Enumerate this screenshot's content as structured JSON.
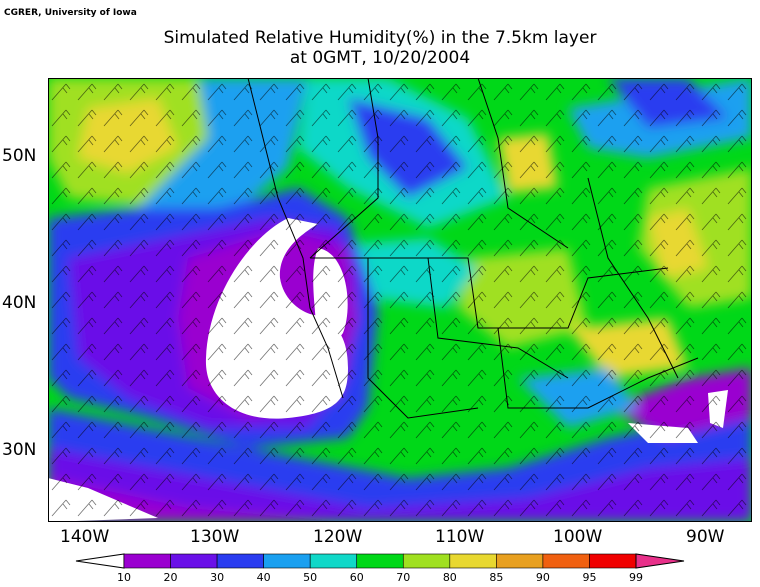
{
  "credit": "CGRER, University of Iowa",
  "title_line1": "Simulated Relative Humidity(%) in the 7.5km layer",
  "title_line2": "at 0GMT, 10/20/2004",
  "map": {
    "lat_labels": [
      "50N",
      "40N",
      "30N"
    ],
    "lon_labels": [
      "140W",
      "130W",
      "120W",
      "110W",
      "100W",
      "90W"
    ],
    "overlay": "wind barbs",
    "icon": "wind-barb-icon"
  },
  "colorbar": {
    "levels": [
      "10",
      "20",
      "30",
      "40",
      "50",
      "60",
      "70",
      "80",
      "85",
      "90",
      "95",
      "99"
    ],
    "colors": [
      "#ffffff",
      "#9a00d0",
      "#6a10e8",
      "#2a3cf0",
      "#1aa0f0",
      "#10d8c8",
      "#00d818",
      "#a0e020",
      "#e8d830",
      "#e8a020",
      "#f06010",
      "#f00000",
      "#e8308a"
    ]
  }
}
